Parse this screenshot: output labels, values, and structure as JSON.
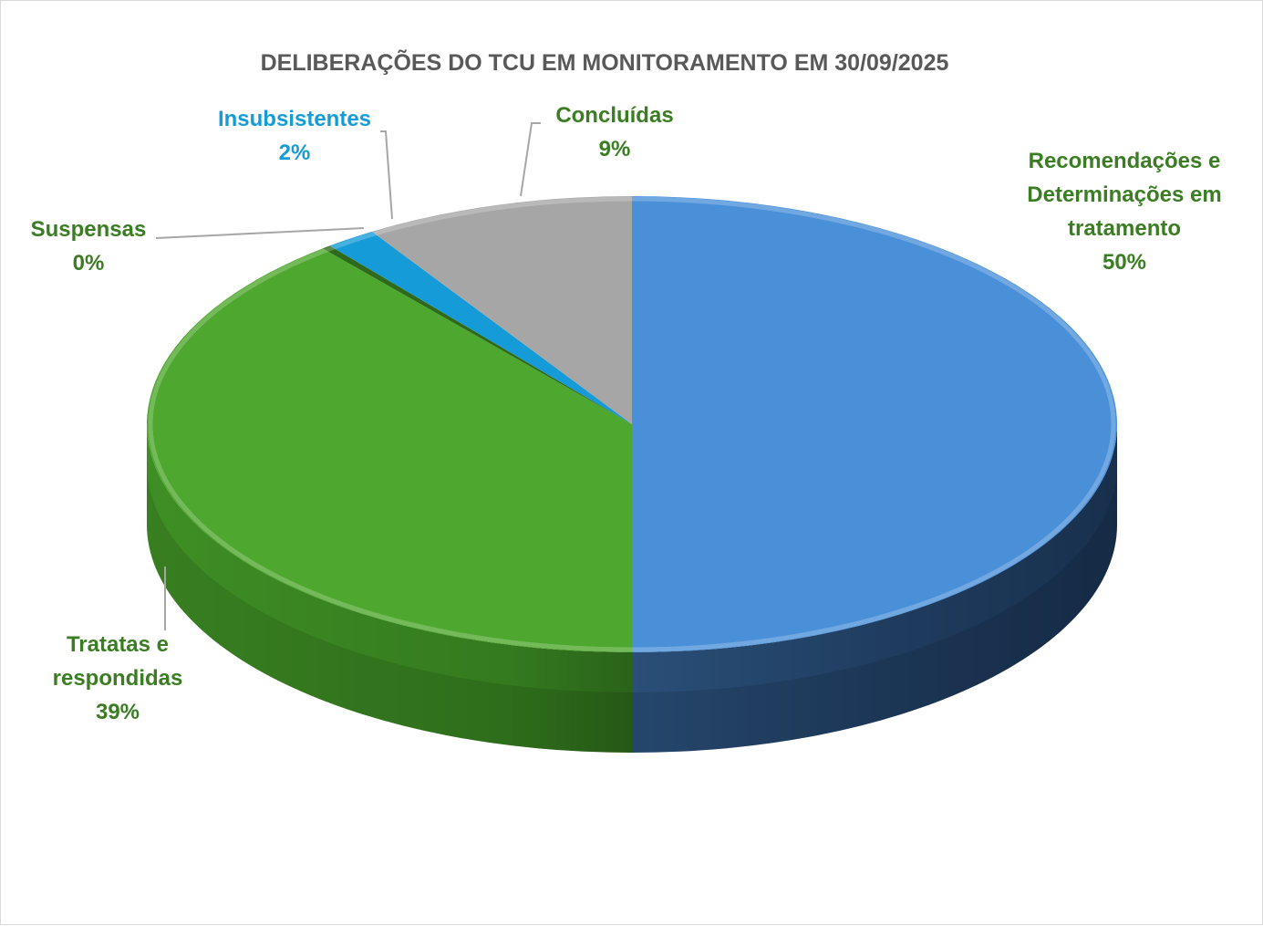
{
  "chart_data": {
    "type": "pie",
    "title": "DELIBERAÇÕES DO TCU EM MONITORAMENTO EM 30/09/2025",
    "style": "3d",
    "legend": "none",
    "slices": [
      {
        "label_lines": [
          "Recomendações  e",
          "Determinações em",
          "tratamento"
        ],
        "value": 50,
        "value_label": "50%",
        "color": "#4a90d9",
        "side_color": "#1f3a5c",
        "label_color": "#3a7d23"
      },
      {
        "label_lines": [
          "Tratatas e",
          "respondidas"
        ],
        "value": 39,
        "value_label": "39%",
        "color": "#4ea72e",
        "side_color": "#3b7d22",
        "label_color": "#3a7d23"
      },
      {
        "label_lines": [
          "Suspensas"
        ],
        "value": 0.3,
        "value_label": "0%",
        "color": "#2e6a1a",
        "side_color": "#24521a",
        "label_color": "#3a7d23"
      },
      {
        "label_lines": [
          "Insubsistentes"
        ],
        "value": 1.7,
        "value_label": "2%",
        "color": "#159bd7",
        "side_color": "#0f6e9a",
        "label_color": "#159bd7"
      },
      {
        "label_lines": [
          "Concluídas"
        ],
        "value": 9,
        "value_label": "9%",
        "color": "#a6a6a6",
        "side_color": "#7a7a7a",
        "label_color": "#3a7d23"
      }
    ],
    "title_color": "#595959",
    "leader_color": "#a6a6a6"
  }
}
